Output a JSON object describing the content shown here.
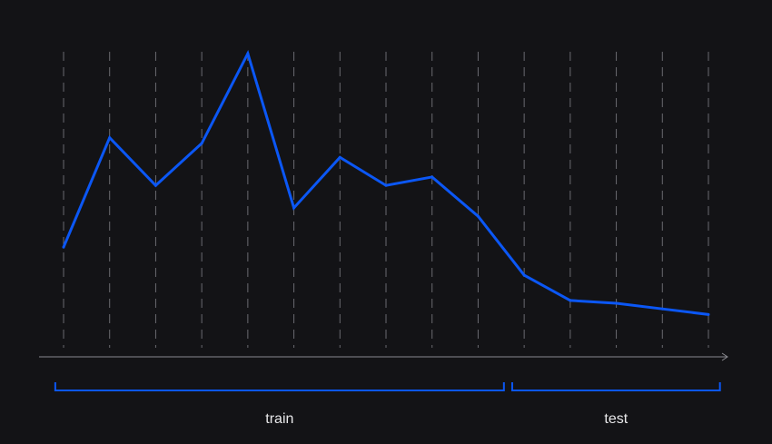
{
  "chart_data": {
    "type": "line",
    "title": "",
    "xlabel": "",
    "ylabel": "",
    "x": [
      1,
      2,
      3,
      4,
      5,
      6,
      7,
      8,
      9,
      10,
      11,
      12,
      13,
      14,
      15
    ],
    "series": [
      {
        "values": [
          3.1,
          7.0,
          5.3,
          6.8,
          10.0,
          4.5,
          6.3,
          5.3,
          5.6,
          4.2,
          2.1,
          1.2,
          1.1,
          0.9,
          0.7
        ]
      }
    ],
    "ylim": [
      0,
      10
    ],
    "grid": true,
    "grid_style": "dashed vertical",
    "x_axis_arrow": true,
    "segments": [
      {
        "label": "train",
        "from": 1,
        "to": 10
      },
      {
        "label": "test",
        "from": 11,
        "to": 15
      }
    ],
    "colors": {
      "background": "#131316",
      "line": "#0b57f5",
      "grid": "#6a6a70",
      "axis": "#8a8a90",
      "text": "#e8e8ea"
    }
  }
}
